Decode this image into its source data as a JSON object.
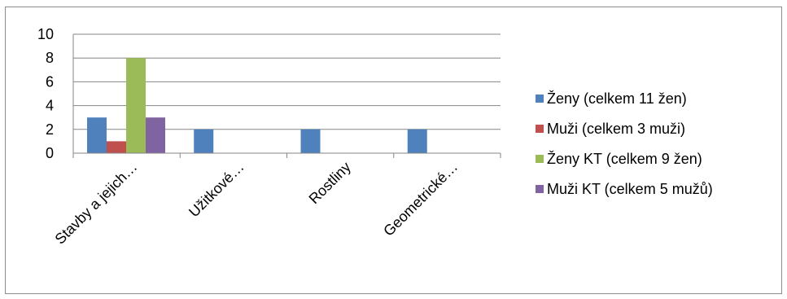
{
  "chart_data": {
    "type": "bar",
    "categories": [
      "Stavby a jejich…",
      "Užitkové…",
      "Rostliny",
      "Geometrické…"
    ],
    "series": [
      {
        "name": "Ženy (celkem 11 žen)",
        "values": [
          3,
          2,
          2,
          2
        ],
        "color": "#4F81BD"
      },
      {
        "name": "Muži (celkem 3 muži)",
        "values": [
          1,
          0,
          0,
          0
        ],
        "color": "#C0504D"
      },
      {
        "name": "Ženy KT (celkem 9 žen)",
        "values": [
          8,
          0,
          0,
          0
        ],
        "color": "#9BBB59"
      },
      {
        "name": "Muži KT (celkem 5 mužů)",
        "values": [
          3,
          0,
          0,
          0
        ],
        "color": "#8064A2"
      }
    ],
    "ylim": [
      0,
      10
    ],
    "yticks": [
      "0",
      "2",
      "4",
      "6",
      "8",
      "10"
    ],
    "title": "",
    "xlabel": "",
    "ylabel": "",
    "grid": true,
    "legend": "right"
  }
}
